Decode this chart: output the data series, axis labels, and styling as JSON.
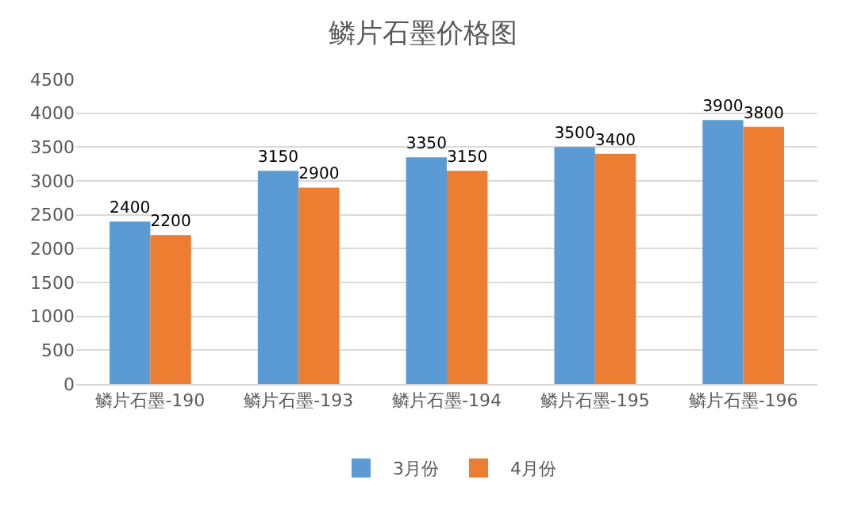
{
  "chart_data": {
    "type": "bar",
    "title": "鳞片石墨价格图",
    "categories": [
      "鳞片石墨-190",
      "鳞片石墨-193",
      "鳞片石墨-194",
      "鳞片石墨-195",
      "鳞片石墨-196"
    ],
    "series": [
      {
        "name": "3月份",
        "color": "#5b9bd5",
        "values": [
          2400,
          3150,
          3350,
          3500,
          3900
        ]
      },
      {
        "name": "4月份",
        "color": "#ed7d31",
        "values": [
          2200,
          2900,
          3150,
          3400,
          3800
        ]
      }
    ],
    "ylim": [
      0,
      4500
    ],
    "yticks": [
      0,
      500,
      1000,
      1500,
      2000,
      2500,
      3000,
      3500,
      4000,
      4500
    ],
    "grid": "y",
    "legend": "bottom",
    "data_labels": true
  }
}
